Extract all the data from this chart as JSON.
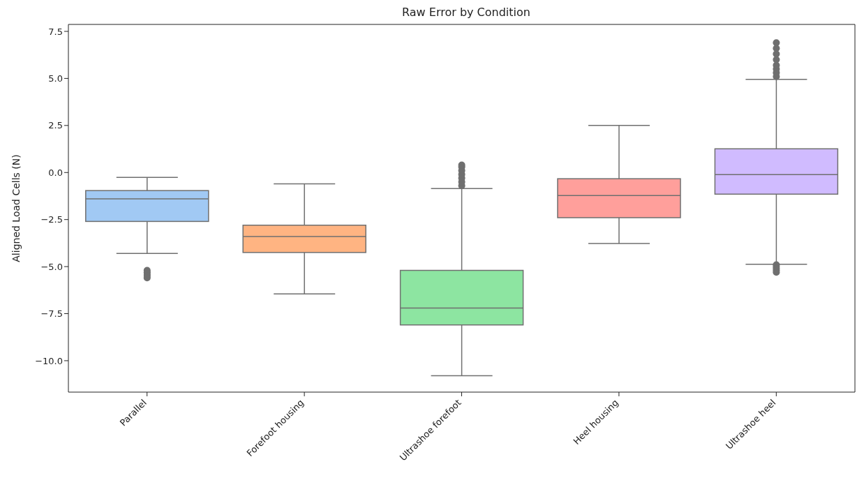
{
  "chart_data": {
    "type": "box",
    "title": "Raw Error by Condition",
    "ylabel": "Aligned Load Cells (N)",
    "categories": [
      "Parallel",
      "Forefoot housing",
      "Ultrashoe forefoot",
      "Heel housing",
      "Ultrashoe heel"
    ],
    "colors": [
      "#a1c9f4",
      "#ffb482",
      "#8de5a1",
      "#ff9f9b",
      "#d0bbff"
    ],
    "boxes": [
      {
        "low": -4.3,
        "q1": -2.6,
        "median": -1.4,
        "q3": -0.96,
        "high": -0.26,
        "outliers": [
          -5.2,
          -5.3,
          -5.4,
          -5.5,
          -5.6
        ]
      },
      {
        "low": -6.45,
        "q1": -4.25,
        "median": -3.4,
        "q3": -2.8,
        "high": -0.6
      },
      {
        "low": -10.8,
        "q1": -8.1,
        "median": -7.2,
        "q3": -5.2,
        "high": -0.85,
        "outliers": [
          -0.7,
          -0.5,
          -0.3,
          -0.1,
          0.1,
          0.3,
          0.4
        ]
      },
      {
        "low": -3.77,
        "q1": -2.4,
        "median": -1.22,
        "q3": -0.33,
        "high": 2.5
      },
      {
        "low": -4.88,
        "q1": -1.15,
        "median": -0.11,
        "q3": 1.26,
        "high": 4.95,
        "outliers": [
          5.1,
          5.3,
          5.5,
          5.7,
          6.0,
          6.3,
          6.6,
          6.9,
          -4.9,
          -5.0,
          -5.1,
          -5.2,
          -5.3
        ]
      }
    ],
    "ylim": [
      -11.67,
      7.87
    ],
    "yticks": [
      {
        "value": -10,
        "label": "−10.0"
      },
      {
        "value": -7.5,
        "label": "−7.5"
      },
      {
        "value": -5,
        "label": "−5.0"
      },
      {
        "value": -2.5,
        "label": "−2.5"
      },
      {
        "value": 0,
        "label": "0.0"
      },
      {
        "value": 2.5,
        "label": "2.5"
      },
      {
        "value": 5,
        "label": "5.0"
      },
      {
        "value": 7.5,
        "label": "7.5"
      }
    ],
    "grid": false,
    "legend": false,
    "marker": "circle"
  }
}
